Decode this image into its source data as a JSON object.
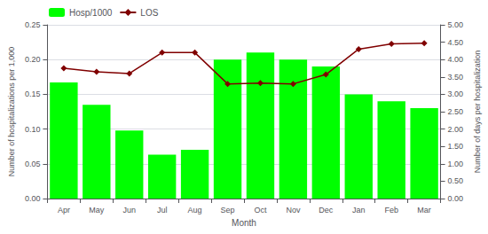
{
  "chart_data": {
    "type": "bar",
    "xlabel": "Month",
    "ylabel": "Number of hospitalizations per 1,000",
    "y2label": "Number of days per hospitalization",
    "categories": [
      "Apr",
      "May",
      "Jun",
      "Jul",
      "Aug",
      "Sep",
      "Oct",
      "Nov",
      "Dec",
      "Jan",
      "Feb",
      "Mar"
    ],
    "series": [
      {
        "name": "Hosp/1000",
        "type": "bar",
        "color": "#00ff00",
        "values": [
          0.167,
          0.135,
          0.098,
          0.063,
          0.07,
          0.2,
          0.21,
          0.2,
          0.19,
          0.15,
          0.14,
          0.13
        ]
      },
      {
        "name": "LOS",
        "type": "line",
        "axis": "y2",
        "color": "#800000",
        "marker": "diamond",
        "values": [
          3.75,
          3.65,
          3.6,
          4.2,
          4.2,
          3.3,
          3.32,
          3.3,
          3.57,
          4.3,
          4.45,
          4.47
        ]
      }
    ],
    "ylim": [
      0,
      0.25
    ],
    "yticks": [
      {
        "value": 0,
        "label": "0.00"
      },
      0.05,
      {
        "value": 0.1,
        "label": "0.10"
      },
      0.15,
      {
        "value": 0.2,
        "label": "0.20"
      },
      0.25
    ],
    "y2lim": [
      0,
      5
    ],
    "y2ticks": [
      {
        "value": 0,
        "label": "0.00"
      },
      {
        "value": 0.5,
        "label": "0.50"
      },
      {
        "value": 1,
        "label": "1.00"
      },
      {
        "value": 1.5,
        "label": "1.50"
      },
      {
        "value": 2,
        "label": "2.00"
      },
      {
        "value": 2.5,
        "label": "2.50"
      },
      {
        "value": 3,
        "label": "3.00"
      },
      {
        "value": 3.5,
        "label": "3.50"
      },
      {
        "value": 4,
        "label": "4.00"
      },
      {
        "value": 4.5,
        "label": "4.50"
      },
      {
        "value": 5,
        "label": "5.00"
      }
    ],
    "grid": true,
    "legend": "upper left"
  }
}
